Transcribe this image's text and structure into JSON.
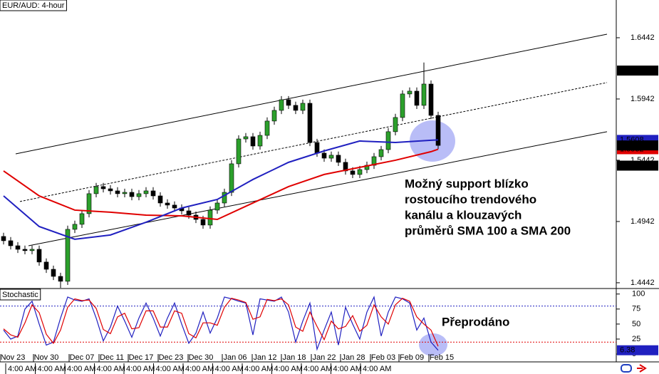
{
  "chart_data": [
    {
      "type": "candlestick",
      "title": "EUR/AUD: 4-hour",
      "xlim": [
        -0.5,
        86
      ],
      "ylim": [
        1.4395,
        1.675
      ],
      "yticks": [
        1.4442,
        1.4942,
        1.5442,
        1.5942,
        1.6442
      ],
      "xticks": [
        {
          "value": 1.3,
          "label": "Nov 23"
        },
        {
          "value": 6,
          "label": "Nov 30"
        },
        {
          "value": 11,
          "label": "Dec 07"
        },
        {
          "value": 15.2,
          "label": "Dec 11"
        },
        {
          "value": 19.3,
          "label": "Dec 17"
        },
        {
          "value": 23.5,
          "label": "Dec 23"
        },
        {
          "value": 27.7,
          "label": "Dec 30"
        },
        {
          "value": 32.5,
          "label": "Jan 06"
        },
        {
          "value": 36.7,
          "label": "Jan 12"
        },
        {
          "value": 40.8,
          "label": "Jan 18"
        },
        {
          "value": 45,
          "label": "Jan 22"
        },
        {
          "value": 49.1,
          "label": "Jan 28"
        },
        {
          "value": 53.3,
          "label": "Feb 03"
        },
        {
          "value": 57.3,
          "label": "Feb 09"
        },
        {
          "value": 61.5,
          "label": "Feb 15"
        }
      ],
      "up_color": "#2ca02c",
      "down_color": "#000000",
      "open": [
        1.482,
        1.4785,
        1.4744,
        1.4715,
        1.4704,
        1.4715,
        1.4611,
        1.4552,
        1.4494,
        1.4454,
        1.4878,
        1.4919,
        1.5006,
        1.5169,
        1.5227,
        1.5209,
        1.5192,
        1.5169,
        1.518,
        1.5145,
        1.5169,
        1.5192,
        1.5151,
        1.5093,
        1.5076,
        1.5052,
        1.5029,
        1.4994,
        1.4959,
        1.4913,
        1.5035,
        1.5093,
        1.518,
        1.5413,
        1.5616,
        1.5634,
        1.5558,
        1.5645,
        1.5762,
        1.5849,
        1.5936,
        1.589,
        1.5849,
        1.5907,
        1.5587,
        1.55,
        1.5459,
        1.5483,
        1.5425,
        1.5355,
        1.5326,
        1.5366,
        1.5401,
        1.5471,
        1.5529,
        1.5675,
        1.5791,
        1.5983,
        1.6006,
        1.589,
        1.6064,
        1.5808
      ],
      "high": [
        1.485,
        1.4815,
        1.4774,
        1.4745,
        1.4745,
        1.4745,
        1.4641,
        1.4582,
        1.4524,
        1.4908,
        1.4949,
        1.5036,
        1.5199,
        1.5257,
        1.5257,
        1.5239,
        1.5222,
        1.521,
        1.521,
        1.5199,
        1.5222,
        1.5222,
        1.5181,
        1.5123,
        1.5106,
        1.5082,
        1.5059,
        1.5024,
        1.4989,
        1.5065,
        1.5123,
        1.521,
        1.5443,
        1.5646,
        1.5664,
        1.5664,
        1.5675,
        1.5792,
        1.5879,
        1.5966,
        1.5966,
        1.592,
        1.5937,
        1.5937,
        1.5617,
        1.553,
        1.5513,
        1.5513,
        1.5455,
        1.5385,
        1.5396,
        1.5431,
        1.5501,
        1.5559,
        1.5705,
        1.5821,
        1.6013,
        1.6036,
        1.6036,
        1.624,
        1.6094,
        1.5838
      ],
      "low": [
        1.4755,
        1.4714,
        1.4685,
        1.4674,
        1.4674,
        1.4581,
        1.4522,
        1.4464,
        1.44,
        1.4424,
        1.4848,
        1.4889,
        1.4976,
        1.5139,
        1.5179,
        1.5162,
        1.5139,
        1.5139,
        1.5115,
        1.5115,
        1.5139,
        1.5121,
        1.5063,
        1.5046,
        1.5022,
        1.4999,
        1.4964,
        1.4929,
        1.4883,
        1.4883,
        1.5005,
        1.5063,
        1.515,
        1.5383,
        1.5586,
        1.5528,
        1.5528,
        1.5615,
        1.5732,
        1.5819,
        1.586,
        1.5819,
        1.5819,
        1.5557,
        1.547,
        1.5429,
        1.5429,
        1.5395,
        1.5325,
        1.5296,
        1.5296,
        1.5336,
        1.5371,
        1.5441,
        1.5499,
        1.5645,
        1.5761,
        1.5953,
        1.586,
        1.586,
        1.5778,
        1.5533
      ],
      "close": [
        1.4785,
        1.4744,
        1.4715,
        1.4704,
        1.4715,
        1.4611,
        1.4552,
        1.4494,
        1.4454,
        1.4878,
        1.4919,
        1.5006,
        1.5169,
        1.5227,
        1.5209,
        1.5192,
        1.5169,
        1.518,
        1.5145,
        1.5169,
        1.5192,
        1.5151,
        1.5093,
        1.5076,
        1.5052,
        1.5029,
        1.4994,
        1.4959,
        1.4913,
        1.5035,
        1.5093,
        1.518,
        1.5413,
        1.5616,
        1.5634,
        1.5558,
        1.5645,
        1.5762,
        1.5849,
        1.5936,
        1.589,
        1.5849,
        1.5907,
        1.5587,
        1.55,
        1.5459,
        1.5483,
        1.5425,
        1.5355,
        1.5326,
        1.5366,
        1.5401,
        1.5471,
        1.5529,
        1.5675,
        1.5791,
        1.5983,
        1.6006,
        1.589,
        1.6064,
        1.5808,
        1.5563
      ],
      "overlays": [
        {
          "color": "#e00000",
          "x": [
            0,
            5,
            10,
            15,
            20,
            25,
            30,
            35,
            40,
            45,
            50,
            55,
            60,
            61
          ],
          "values": [
            1.5355,
            1.5151,
            1.5035,
            1.5018,
            1.4994,
            1.4988,
            1.4959,
            1.5093,
            1.5227,
            1.5326,
            1.5384,
            1.5442,
            1.5512,
            1.5532
          ]
        },
        {
          "color": "#2020c0",
          "x": [
            0,
            5,
            10,
            15,
            20,
            25,
            30,
            35,
            40,
            45,
            50,
            55,
            60,
            61
          ],
          "values": [
            1.5151,
            1.4901,
            1.4797,
            1.4832,
            1.4936,
            1.5052,
            1.5122,
            1.5285,
            1.5425,
            1.5518,
            1.5599,
            1.5587,
            1.5605,
            1.5608
          ]
        }
      ],
      "trendlines": [
        {
          "x": [
            1.7,
            84.7
          ],
          "values": [
            1.5494,
            1.6471
          ],
          "dashed": false
        },
        {
          "x": [
            2.3,
            84.7
          ],
          "values": [
            1.5105,
            1.6076
          ],
          "dashed": true
        },
        {
          "x": [
            3.5,
            84.7
          ],
          "values": [
            1.4744,
            1.5675
          ],
          "dashed": false
        }
      ],
      "markers": [
        1.6174,
        1.5398
      ],
      "annotation": [
        "Možný support blízko",
        "rostoucího trendového",
        "kanálu a klouzavých",
        "průměrů SMA 100 a SMA 200"
      ]
    },
    {
      "type": "line",
      "title": "Stochastic",
      "xlim": [
        -0.5,
        86
      ],
      "ylim": [
        -3.5,
        108
      ],
      "yticks": [
        0,
        25,
        50,
        75,
        100
      ],
      "levels": [
        {
          "value": 80,
          "color": "#2020c0"
        },
        {
          "value": 20,
          "color": "#e00000"
        }
      ],
      "series": [
        {
          "color": "#2020c0",
          "values": [
            40,
            25,
            30,
            75,
            88,
            50,
            15,
            20,
            60,
            95,
            90,
            88,
            92,
            60,
            22,
            45,
            80,
            55,
            28,
            60,
            85,
            60,
            30,
            60,
            85,
            50,
            18,
            35,
            70,
            35,
            60,
            95,
            92,
            88,
            85,
            32,
            92,
            90,
            88,
            95,
            70,
            20,
            55,
            85,
            8,
            40,
            70,
            15,
            78,
            50,
            25,
            70,
            95,
            30,
            70,
            95,
            92,
            85,
            40,
            60,
            20,
            6.38
          ]
        },
        {
          "color": "#e00000",
          "values": [
            42,
            32,
            28,
            52,
            82,
            69,
            33,
            18,
            40,
            78,
            92,
            89,
            90,
            76,
            41,
            34,
            62,
            68,
            42,
            44,
            72,
            72,
            45,
            45,
            72,
            68,
            34,
            27,
            52,
            52,
            48,
            78,
            93,
            90,
            86,
            58,
            62,
            91,
            89,
            92,
            82,
            45,
            38,
            70,
            46,
            24,
            55,
            42,
            46,
            64,
            38,
            48,
            82,
            62,
            50,
            82,
            93,
            88,
            62,
            50,
            40,
            13
          ]
        }
      ],
      "annotation": "Přeprodáno"
    }
  ],
  "footer": {
    "time_labels": [
      "4:00 AM",
      "4:00 AM",
      "4:00 AM",
      "4:00 AM",
      "4:00 AM",
      "4:00 AM",
      "4:00 AM",
      "4:00 AM",
      "4:00 AM",
      "4:00 AM",
      "4:00 AM",
      "4:00 AM",
      "4:00 AM"
    ]
  }
}
